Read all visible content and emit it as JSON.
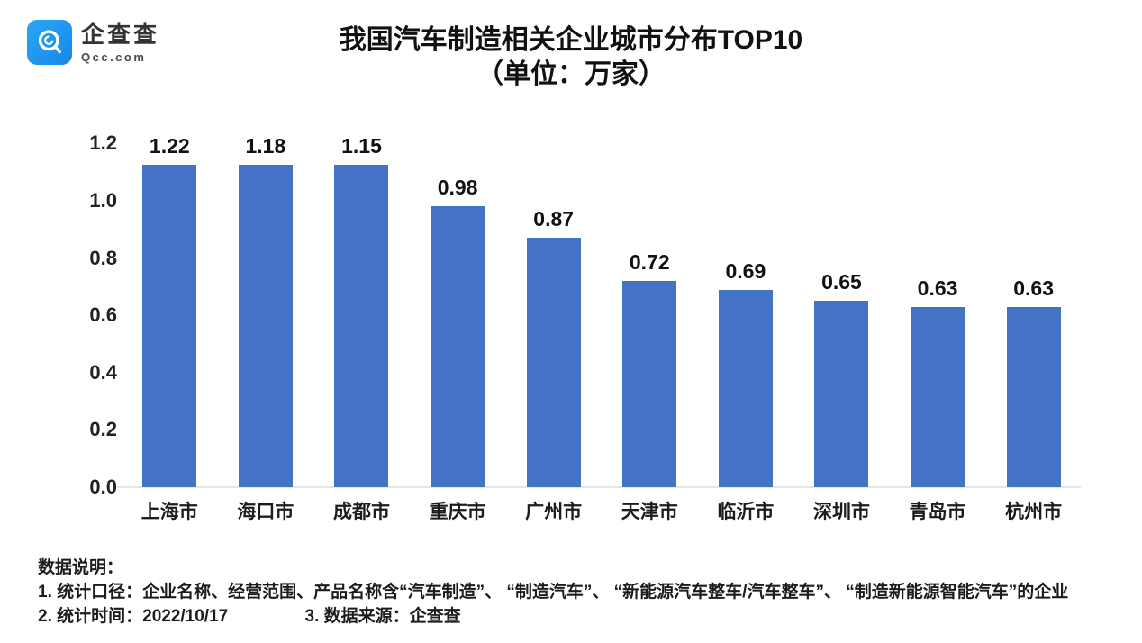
{
  "logo": {
    "name": "企查查",
    "domain": "Qcc.com",
    "brand_color": "#1E9BF0"
  },
  "title": {
    "line1": "我国汽车制造相关企业城市分布TOP10",
    "line2": "（单位：万家）"
  },
  "chart_data": {
    "type": "bar",
    "title": "我国汽车制造相关企业城市分布TOP10（单位：万家）",
    "categories": [
      "上海市",
      "海口市",
      "成都市",
      "重庆市",
      "广州市",
      "天津市",
      "临沂市",
      "深圳市",
      "青岛市",
      "杭州市"
    ],
    "values": [
      1.22,
      1.18,
      1.15,
      0.98,
      0.87,
      0.72,
      0.69,
      0.65,
      0.63,
      0.63
    ],
    "value_labels": [
      "1.22",
      "1.18",
      "1.15",
      "0.98",
      "0.87",
      "0.72",
      "0.69",
      "0.65",
      "0.63",
      "0.63"
    ],
    "xlabel": "",
    "ylabel": "",
    "ylim": [
      0,
      1.2
    ],
    "yticks": [
      0.0,
      0.2,
      0.4,
      0.6,
      0.8,
      1.0,
      1.2
    ],
    "ytick_labels": [
      "0.0",
      "0.2",
      "0.4",
      "0.6",
      "0.8",
      "1.0",
      "1.2"
    ],
    "bar_color": "#4472C4",
    "grid": false,
    "legend": false
  },
  "notes": {
    "heading": "数据说明：",
    "line1": "1. 统计口径：企业名称、经营范围、产品名称含“汽车制造”、 “制造汽车”、 “新能源汽车整车/汽车整车”、 “制造新能源智能汽车”的企业",
    "line2_left": "2. 统计时间：2022/10/17",
    "line2_right": "3. 数据来源：企查查"
  }
}
